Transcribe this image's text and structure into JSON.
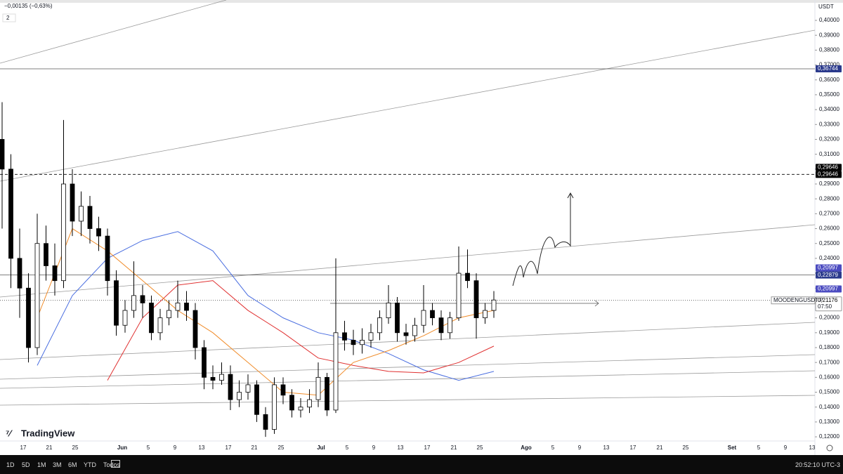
{
  "header": {
    "change": "−0,00135 (−0,63%)",
    "indicator_count": "2"
  },
  "chart_data": {
    "type": "candlestick",
    "currency": "USDT",
    "symbol": "MOODENGUSDT.P",
    "countdown": "07:50",
    "ylim": [
      0.1172,
      0.4137
    ],
    "yticks": [
      {
        "value": 0.4,
        "label": "0,40000"
      },
      {
        "value": 0.39,
        "label": "0,39000"
      },
      {
        "value": 0.38,
        "label": "0,38000"
      },
      {
        "value": 0.37,
        "label": "0,37000"
      },
      {
        "value": 0.36,
        "label": "0,36000"
      },
      {
        "value": 0.35,
        "label": "0,35000"
      },
      {
        "value": 0.34,
        "label": "0,34000"
      },
      {
        "value": 0.33,
        "label": "0,33000"
      },
      {
        "value": 0.32,
        "label": "0,32000"
      },
      {
        "value": 0.31,
        "label": "0,31000"
      },
      {
        "value": 0.3,
        "label": "0,30000"
      },
      {
        "value": 0.29,
        "label": "0,29000"
      },
      {
        "value": 0.28,
        "label": "0,28000"
      },
      {
        "value": 0.27,
        "label": "0,27000"
      },
      {
        "value": 0.26,
        "label": "0,26000"
      },
      {
        "value": 0.25,
        "label": "0,25000"
      },
      {
        "value": 0.24,
        "label": "0,24000"
      },
      {
        "value": 0.23,
        "label": "0,23000"
      },
      {
        "value": 0.22,
        "label": "0,22000"
      },
      {
        "value": 0.21,
        "label": "0,21000"
      },
      {
        "value": 0.2,
        "label": "0,20000"
      },
      {
        "value": 0.19,
        "label": "0,19000"
      },
      {
        "value": 0.18,
        "label": "0,18000"
      },
      {
        "value": 0.17,
        "label": "0,17000"
      },
      {
        "value": 0.16,
        "label": "0,16000"
      },
      {
        "value": 0.15,
        "label": "0,15000"
      },
      {
        "value": 0.14,
        "label": "0,14000"
      },
      {
        "value": 0.13,
        "label": "0,13000"
      },
      {
        "value": 0.12,
        "label": "0,12000"
      }
    ],
    "xtick_labels": [
      "17",
      "21",
      "25",
      "Jun",
      "5",
      "9",
      "13",
      "17",
      "21",
      "25",
      "Jul",
      "5",
      "9",
      "13",
      "17",
      "21",
      "25",
      "Ago",
      "5",
      "9",
      "13",
      "17",
      "21",
      "25",
      "Set",
      "5",
      "9",
      "13"
    ],
    "up_color": "#ffffff",
    "down_color": "#000000",
    "candles": [
      [
        0.32,
        0.345,
        0.26,
        0.3
      ],
      [
        0.3,
        0.31,
        0.22,
        0.24
      ],
      [
        0.24,
        0.26,
        0.2,
        0.22
      ],
      [
        0.22,
        0.23,
        0.17,
        0.18
      ],
      [
        0.18,
        0.27,
        0.175,
        0.25
      ],
      [
        0.25,
        0.262,
        0.225,
        0.235
      ],
      [
        0.235,
        0.25,
        0.215,
        0.225
      ],
      [
        0.225,
        0.333,
        0.22,
        0.29
      ],
      [
        0.29,
        0.3,
        0.255,
        0.265
      ],
      [
        0.265,
        0.285,
        0.255,
        0.275
      ],
      [
        0.275,
        0.282,
        0.25,
        0.26
      ],
      [
        0.26,
        0.268,
        0.245,
        0.255
      ],
      [
        0.255,
        0.26,
        0.215,
        0.225
      ],
      [
        0.225,
        0.232,
        0.188,
        0.195
      ],
      [
        0.195,
        0.212,
        0.19,
        0.205
      ],
      [
        0.205,
        0.238,
        0.2,
        0.215
      ],
      [
        0.215,
        0.222,
        0.2,
        0.21
      ],
      [
        0.21,
        0.215,
        0.185,
        0.19
      ],
      [
        0.19,
        0.206,
        0.185,
        0.2
      ],
      [
        0.2,
        0.212,
        0.195,
        0.205
      ],
      [
        0.205,
        0.225,
        0.2,
        0.21
      ],
      [
        0.21,
        0.218,
        0.198,
        0.205
      ],
      [
        0.205,
        0.21,
        0.172,
        0.18
      ],
      [
        0.18,
        0.185,
        0.152,
        0.16
      ],
      [
        0.16,
        0.168,
        0.152,
        0.158
      ],
      [
        0.158,
        0.17,
        0.155,
        0.162
      ],
      [
        0.162,
        0.168,
        0.138,
        0.145
      ],
      [
        0.145,
        0.158,
        0.14,
        0.15
      ],
      [
        0.15,
        0.162,
        0.145,
        0.155
      ],
      [
        0.155,
        0.158,
        0.13,
        0.135
      ],
      [
        0.135,
        0.14,
        0.12,
        0.125
      ],
      [
        0.125,
        0.16,
        0.122,
        0.155
      ],
      [
        0.155,
        0.16,
        0.142,
        0.148
      ],
      [
        0.148,
        0.152,
        0.133,
        0.138
      ],
      [
        0.138,
        0.146,
        0.133,
        0.14
      ],
      [
        0.14,
        0.152,
        0.136,
        0.145
      ],
      [
        0.145,
        0.17,
        0.14,
        0.16
      ],
      [
        0.16,
        0.163,
        0.134,
        0.138
      ],
      [
        0.138,
        0.24,
        0.136,
        0.19
      ],
      [
        0.19,
        0.198,
        0.178,
        0.185
      ],
      [
        0.185,
        0.192,
        0.175,
        0.182
      ],
      [
        0.182,
        0.193,
        0.176,
        0.185
      ],
      [
        0.185,
        0.196,
        0.18,
        0.19
      ],
      [
        0.19,
        0.205,
        0.185,
        0.2
      ],
      [
        0.2,
        0.222,
        0.196,
        0.21
      ],
      [
        0.21,
        0.214,
        0.184,
        0.19
      ],
      [
        0.19,
        0.196,
        0.182,
        0.188
      ],
      [
        0.188,
        0.2,
        0.184,
        0.195
      ],
      [
        0.195,
        0.222,
        0.19,
        0.205
      ],
      [
        0.205,
        0.21,
        0.195,
        0.2
      ],
      [
        0.2,
        0.205,
        0.185,
        0.19
      ],
      [
        0.19,
        0.204,
        0.186,
        0.2
      ],
      [
        0.2,
        0.248,
        0.198,
        0.23
      ],
      [
        0.23,
        0.246,
        0.22,
        0.225
      ],
      [
        0.225,
        0.23,
        0.186,
        0.2
      ],
      [
        0.2,
        0.21,
        0.196,
        0.205
      ],
      [
        0.205,
        0.218,
        0.2,
        0.212
      ]
    ],
    "moving_averages": [
      {
        "color": "#4a6ee0",
        "values": [
          null,
          0.168,
          0.215,
          0.24,
          0.252,
          0.258,
          0.245,
          0.215,
          0.2,
          0.19,
          0.185,
          0.176,
          0.165,
          0.158,
          0.164
        ]
      },
      {
        "color": "#e03030",
        "values": [
          null,
          null,
          null,
          0.158,
          0.2,
          0.222,
          0.225,
          0.205,
          0.19,
          0.173,
          0.168,
          0.164,
          0.163,
          0.17,
          0.181
        ]
      },
      {
        "color": "#f08c2a",
        "values": [
          null,
          0.2,
          0.26,
          0.245,
          0.225,
          0.205,
          0.19,
          0.17,
          0.15,
          0.148,
          0.17,
          0.178,
          0.188,
          0.2,
          0.205
        ]
      }
    ],
    "price_lines": [
      {
        "value": 0.36744,
        "style": "solid",
        "color": "#555555"
      },
      {
        "value": 0.29646,
        "style": "dashed",
        "color": "#000000"
      },
      {
        "value": 0.22879,
        "style": "solid",
        "color": "#555555"
      },
      {
        "value": 0.21176,
        "style": "dotted",
        "color": "#333333"
      }
    ],
    "price_tags": [
      {
        "value": 0.36744,
        "label": "0,36744",
        "color": "#2b3a8c"
      },
      {
        "value": 0.29646,
        "label": "0,29646",
        "color": "#000000"
      },
      {
        "value": 0.29646,
        "label": "0,29646",
        "color": "#000000"
      },
      {
        "value": 0.22879,
        "label": "0,22879",
        "color": "#2b3a8c"
      },
      {
        "value": 0.21176,
        "label": "0,21176",
        "color": "#ffffff"
      },
      {
        "value": 0.20997,
        "label": "0,20997",
        "color": "#4b4bc0"
      },
      {
        "value": 0.20997,
        "label": "0,20997",
        "color": "#4b4bc0"
      }
    ]
  },
  "logo": "TradingView",
  "toolbar": {
    "ranges": [
      "1D",
      "5D",
      "1M",
      "3M",
      "6M",
      "YTD",
      "Todos"
    ],
    "clock": "20:52:10 UTC-3"
  }
}
